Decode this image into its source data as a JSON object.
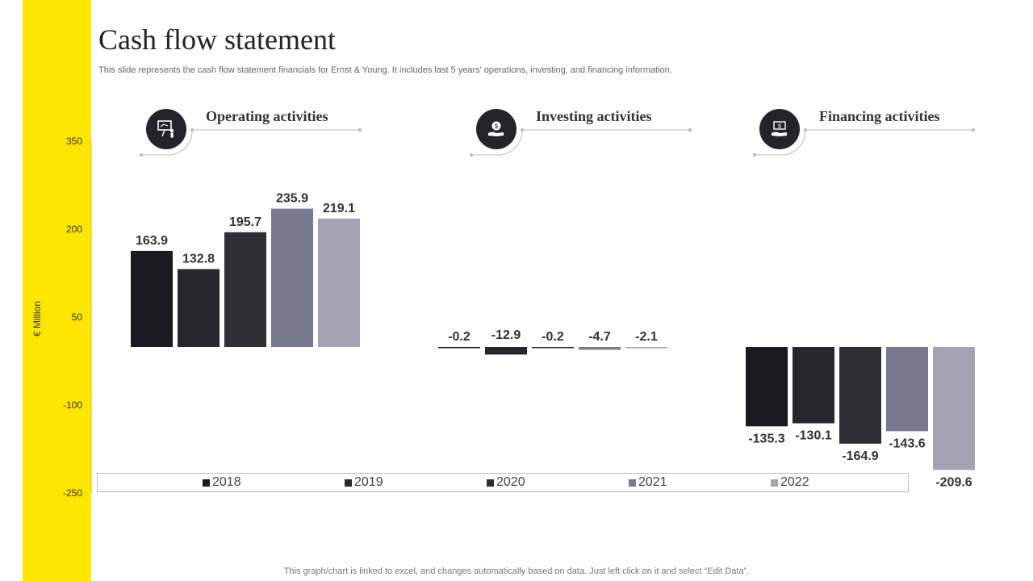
{
  "title": "Cash flow statement",
  "subtitle": "This slide represents the cash flow statement financials for Ernst & Young. It includes last 5 years' operations, investing, and financing information.",
  "footer": "This graph/chart is linked to excel, and changes automatically based on data. Just left click on it and select “Edit Data”.",
  "colors": {
    "accent": "#FFE600",
    "icon_bg": "#24232b",
    "2018": "#1b1a20",
    "2019": "#27262d",
    "2020": "#2f2e36",
    "2021": "#7a7891",
    "2022": "#a5a3b3"
  },
  "sections": [
    {
      "title": "Operating activities",
      "icon": "presentation-icon"
    },
    {
      "title": "Investing activities",
      "icon": "money-bag-icon"
    },
    {
      "title": "Financing activities",
      "icon": "hand-money-icon"
    }
  ],
  "chart_data": {
    "type": "bar",
    "categories": [
      "Operating activities",
      "Investing activities",
      "Financing activities"
    ],
    "series": [
      {
        "name": "2018",
        "values": [
          163.9,
          -0.2,
          -135.3
        ]
      },
      {
        "name": "2019",
        "values": [
          132.8,
          -12.9,
          -130.1
        ]
      },
      {
        "name": "2020",
        "values": [
          195.7,
          -0.2,
          -164.9
        ]
      },
      {
        "name": "2021",
        "values": [
          235.9,
          -4.7,
          -143.6
        ]
      },
      {
        "name": "2022",
        "values": [
          219.1,
          -2.1,
          -209.6
        ]
      }
    ],
    "ylabel": "€ Million",
    "yticks": [
      "350",
      "200",
      "50",
      "-100",
      "-250"
    ],
    "ylim": [
      -250,
      350
    ],
    "legend": "bottom"
  }
}
